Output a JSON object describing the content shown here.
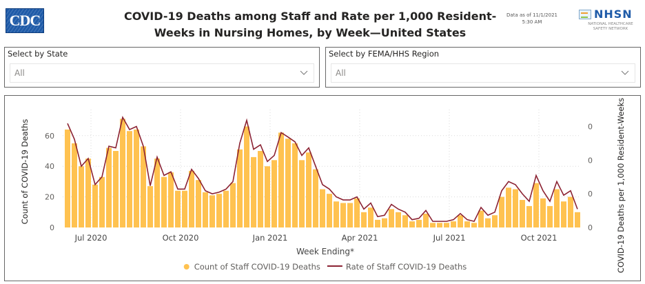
{
  "header": {
    "logo_left": "CDC",
    "title_line1": "COVID-19 Deaths among Staff and Rate per 1,000 Resident-",
    "title_line2": "Weeks in Nursing Homes, by Week—United States",
    "data_as_of_line1": "Data as of 11/1/2021",
    "data_as_of_line2": "5:30 AM",
    "logo_right": "NHSN",
    "logo_right_sub1": "NATIONAL HEALTHCARE",
    "logo_right_sub2": "SAFETY NETWORK"
  },
  "filters": [
    {
      "label": "Select by State",
      "value": "All",
      "icon": "chevron-down-icon"
    },
    {
      "label": "Select by FEMA/HHS Region",
      "value": "All",
      "icon": "chevron-down-icon"
    }
  ],
  "colors": {
    "bar": "#FFC250",
    "line": "#8B2232",
    "grid": "#D9D9D9"
  },
  "chart_data": {
    "type": "bar",
    "title": "COVID-19 Deaths among Staff and Rate per 1,000 Resident-Weeks in Nursing Homes, by Week—United States",
    "xlabel": "Week Ending*",
    "ylabel": "Count of COVID-19 Deaths",
    "y2label": "COVID-19 Deaths per 1,000 Resident-Weeks",
    "ylim": [
      0,
      72
    ],
    "yticks": [
      "0",
      "20",
      "40",
      "60"
    ],
    "y2ticks": [
      "0",
      "0",
      "0",
      "0"
    ],
    "xtick_labels": [
      "Jul 2020",
      "Oct 2020",
      "Jan 2021",
      "Apr 2021",
      "Jul 2021",
      "Oct 2021"
    ],
    "xtick_week_index": [
      3,
      16,
      29,
      42,
      55,
      68
    ],
    "grid": true,
    "legend_position": "bottom-center",
    "legend": [
      "Count of Staff COVID-19 Deaths",
      "Rate of Staff COVID-19 Deaths"
    ],
    "series": [
      {
        "name": "Count of Staff COVID-19 Deaths",
        "type": "bar",
        "axis": "left",
        "values": [
          64,
          55,
          40,
          45,
          28,
          33,
          52,
          50,
          71,
          63,
          64,
          53,
          27,
          45,
          33,
          36,
          24,
          24,
          37,
          31,
          23,
          21,
          22,
          24,
          29,
          51,
          66,
          46,
          50,
          40,
          44,
          62,
          58,
          55,
          44,
          49,
          38,
          25,
          22,
          17,
          16,
          16,
          19,
          10,
          13,
          5,
          6,
          12,
          10,
          8,
          4,
          5,
          9,
          3,
          3,
          3,
          4,
          8,
          4,
          3,
          11,
          6,
          8,
          20,
          26,
          25,
          18,
          14,
          29,
          19,
          14,
          25,
          17,
          20,
          10
        ]
      },
      {
        "name": "Rate of Staff COVID-19 Deaths",
        "type": "line",
        "axis": "right",
        "values": [
          0.374,
          0.317,
          0.22,
          0.248,
          0.154,
          0.182,
          0.292,
          0.286,
          0.396,
          0.352,
          0.363,
          0.292,
          0.15,
          0.253,
          0.187,
          0.2,
          0.138,
          0.138,
          0.209,
          0.176,
          0.132,
          0.121,
          0.127,
          0.138,
          0.165,
          0.303,
          0.385,
          0.281,
          0.297,
          0.237,
          0.259,
          0.341,
          0.325,
          0.308,
          0.259,
          0.286,
          0.22,
          0.154,
          0.138,
          0.11,
          0.099,
          0.099,
          0.11,
          0.066,
          0.088,
          0.039,
          0.044,
          0.083,
          0.066,
          0.055,
          0.028,
          0.033,
          0.061,
          0.022,
          0.022,
          0.022,
          0.028,
          0.05,
          0.028,
          0.022,
          0.072,
          0.044,
          0.055,
          0.132,
          0.165,
          0.154,
          0.121,
          0.094,
          0.187,
          0.132,
          0.094,
          0.165,
          0.116,
          0.132,
          0.066
        ]
      }
    ]
  }
}
